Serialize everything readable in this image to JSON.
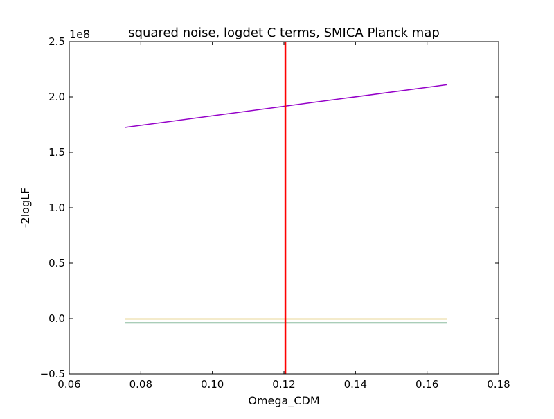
{
  "chart_data": {
    "type": "line",
    "title": "squared noise, logdet C terms, SMICA Planck map",
    "xlabel": "Omega_CDM",
    "ylabel": "-2logLF",
    "y_offset_label": "1e8",
    "xlim": [
      0.06,
      0.18
    ],
    "ylim": [
      -0.5,
      2.5
    ],
    "y_scale_factor": 100000000,
    "grid": false,
    "x_ticks": [
      "0.06",
      "0.08",
      "0.10",
      "0.12",
      "0.14",
      "0.16",
      "0.18"
    ],
    "x_tick_values": [
      0.06,
      0.08,
      0.1,
      0.12,
      0.14,
      0.16,
      0.18
    ],
    "y_ticks": [
      "−0.5",
      "0.0",
      "0.5",
      "1.0",
      "1.5",
      "2.0",
      "2.5"
    ],
    "y_tick_values": [
      -0.5,
      0.0,
      0.5,
      1.0,
      1.5,
      2.0,
      2.5
    ],
    "series": [
      {
        "color": "#9400c8",
        "x": [
          0.0755,
          0.1655
        ],
        "y": [
          1.725,
          2.11
        ]
      },
      {
        "color": "#d4b030",
        "x": [
          0.0755,
          0.1655
        ],
        "y": [
          -0.003,
          -0.003
        ]
      },
      {
        "color": "#1a7a40",
        "x": [
          0.0755,
          0.1655
        ],
        "y": [
          -0.04,
          -0.04
        ]
      }
    ],
    "vertical_line": {
      "x": 0.1204,
      "color": "#ff0000"
    }
  }
}
